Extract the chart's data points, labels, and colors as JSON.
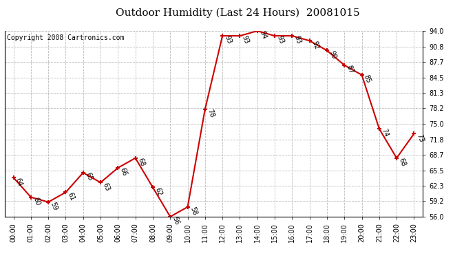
{
  "title": "Outdoor Humidity (Last 24 Hours)  20081015",
  "copyright_text": "Copyright 2008 Cartronics.com",
  "hours": [
    "00:00",
    "01:00",
    "02:00",
    "03:00",
    "04:00",
    "05:00",
    "06:00",
    "07:00",
    "08:00",
    "09:00",
    "10:00",
    "11:00",
    "12:00",
    "13:00",
    "14:00",
    "15:00",
    "16:00",
    "17:00",
    "18:00",
    "19:00",
    "20:00",
    "21:00",
    "22:00",
    "23:00"
  ],
  "values": [
    64,
    60,
    59,
    61,
    65,
    63,
    66,
    68,
    62,
    56,
    58,
    78,
    93,
    93,
    94,
    93,
    93,
    92,
    90,
    87,
    85,
    74,
    68,
    73
  ],
  "ylim": [
    56.0,
    94.0
  ],
  "yticks": [
    56.0,
    59.2,
    62.3,
    65.5,
    68.7,
    71.8,
    75.0,
    78.2,
    81.3,
    84.5,
    87.7,
    90.8,
    94.0
  ],
  "line_color": "#cc0000",
  "marker_color": "#cc0000",
  "bg_color": "#ffffff",
  "plot_bg_color": "#ffffff",
  "grid_color": "#bbbbbb",
  "title_fontsize": 11,
  "copyright_fontsize": 7,
  "label_fontsize": 7,
  "tick_fontsize": 7
}
